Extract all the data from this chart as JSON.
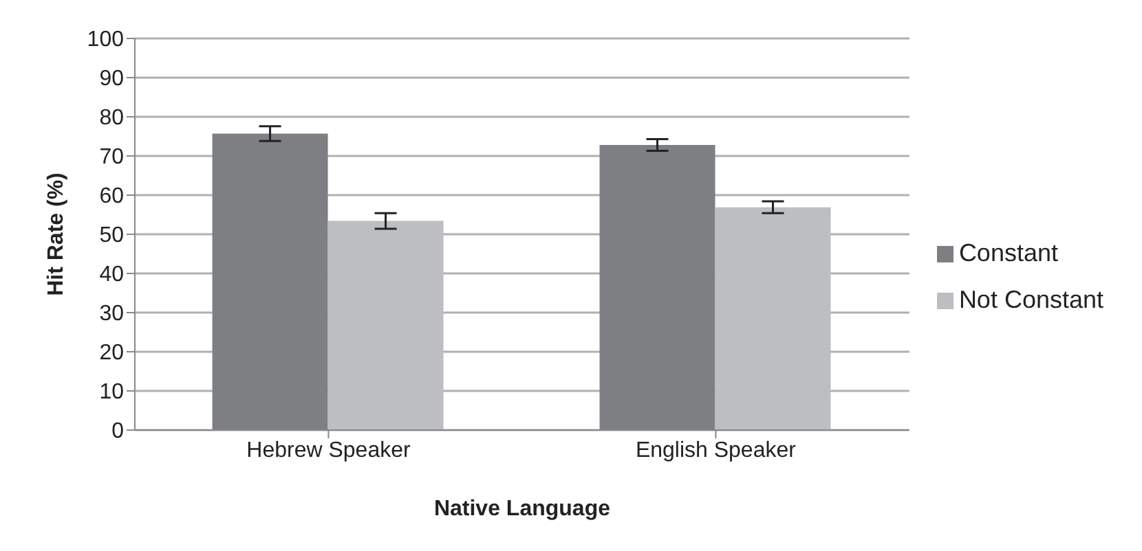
{
  "chart_data": {
    "type": "bar",
    "xlabel": "Native Language",
    "ylabel": "Hit Rate (%)",
    "categories": [
      "Hebrew Speaker",
      "English Speaker"
    ],
    "series": [
      {
        "name": "Constant",
        "color": "#7e7f83",
        "values": [
          75.7,
          72.8
        ],
        "errors": [
          1.9,
          1.5
        ]
      },
      {
        "name": "Not Constant",
        "color": "#bdbec2",
        "values": [
          53.4,
          56.9
        ],
        "errors": [
          2,
          1.5
        ]
      }
    ],
    "ylim": [
      0,
      100
    ],
    "yticks": [
      0,
      10,
      20,
      30,
      40,
      50,
      60,
      70,
      80,
      90,
      100
    ],
    "grid": "y",
    "legend": "right"
  }
}
